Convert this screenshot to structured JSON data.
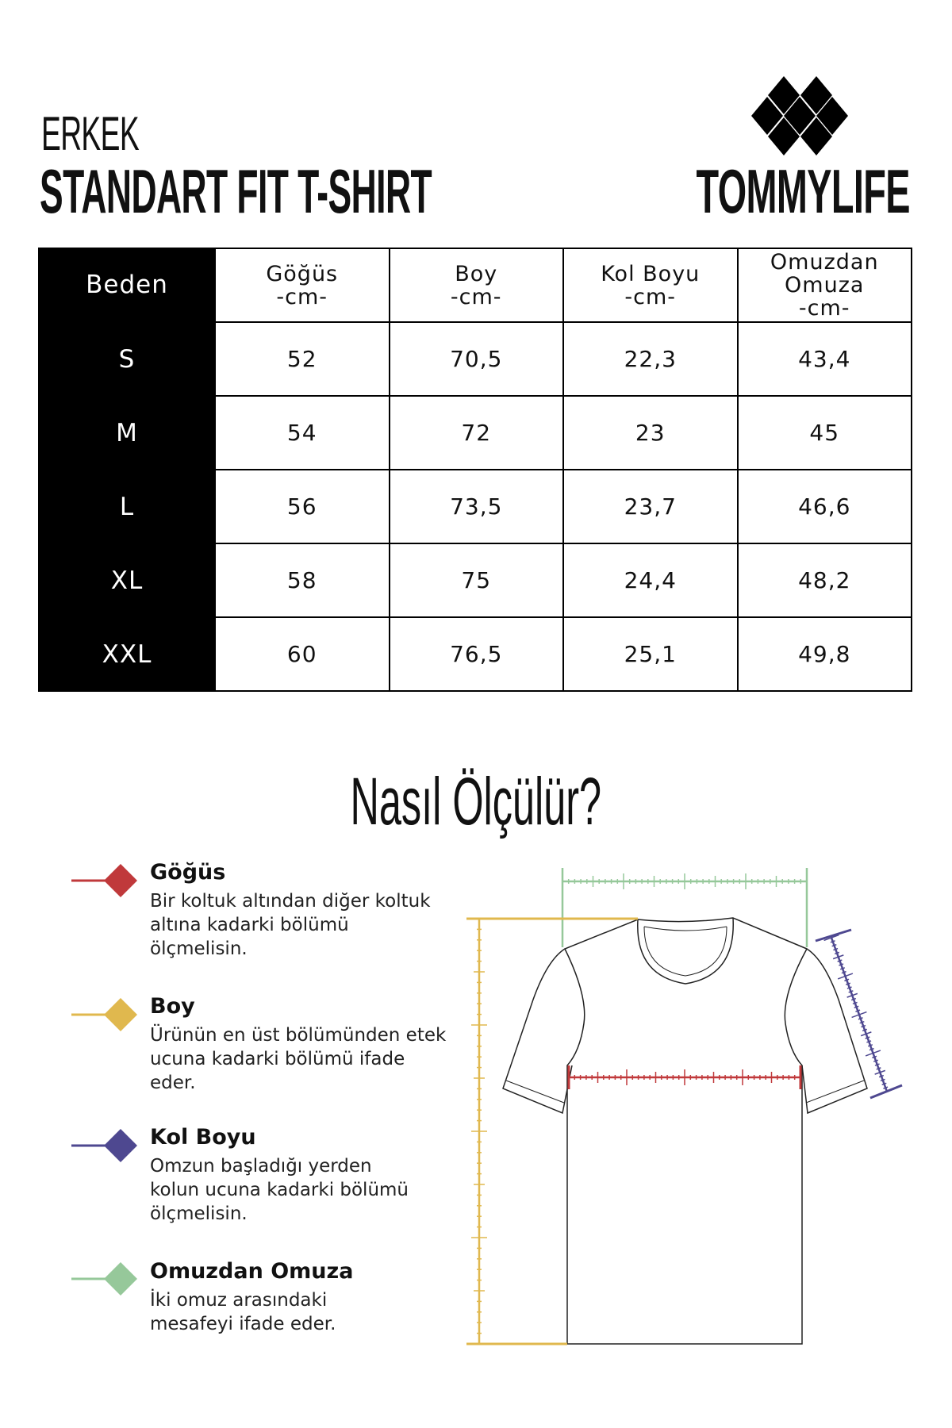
{
  "header": {
    "category": "ERKEK",
    "title": "STANDART FIT T-SHIRT",
    "brand": "TOMMYLIFE"
  },
  "table": {
    "headers": [
      {
        "line1": "Beden"
      },
      {
        "line1": "Göğüs",
        "line2": "-cm-"
      },
      {
        "line1": "Boy",
        "line2": "-cm-"
      },
      {
        "line1": "Kol Boyu",
        "line2": "-cm-"
      },
      {
        "line1": "Omuzdan",
        "line2": "Omuza",
        "line3": "-cm-"
      }
    ],
    "rows": [
      [
        "S",
        "52",
        "70,5",
        "22,3",
        "43,4"
      ],
      [
        "M",
        "54",
        "72",
        "23",
        "45"
      ],
      [
        "L",
        "56",
        "73,5",
        "23,7",
        "46,6"
      ],
      [
        "XL",
        "58",
        "75",
        "24,4",
        "48,2"
      ],
      [
        "XXL",
        "60",
        "76,5",
        "25,1",
        "49,8"
      ]
    ]
  },
  "guide": {
    "title": "Nasıl Ölçülür?",
    "items": [
      {
        "title": "Göğüs",
        "desc": "Bir koltuk altından diğer koltuk altına kadarki bölümü ölçmelisin.",
        "color": "#c0393b"
      },
      {
        "title": "Boy",
        "desc": "Ürünün en üst bölümünden etek ucuna kadarki bölümü ifade eder.",
        "color": "#e0b84e"
      },
      {
        "title": "Kol Boyu",
        "desc": "Omzun başladığı yerden kolun ucuna kadarki bölümü ölçmelisin.",
        "color": "#4e4890"
      },
      {
        "title": "Omuzdan Omuza",
        "desc": "İki omuz arasındaki mesafeyi ifade eder.",
        "color": "#96c89a"
      }
    ]
  }
}
